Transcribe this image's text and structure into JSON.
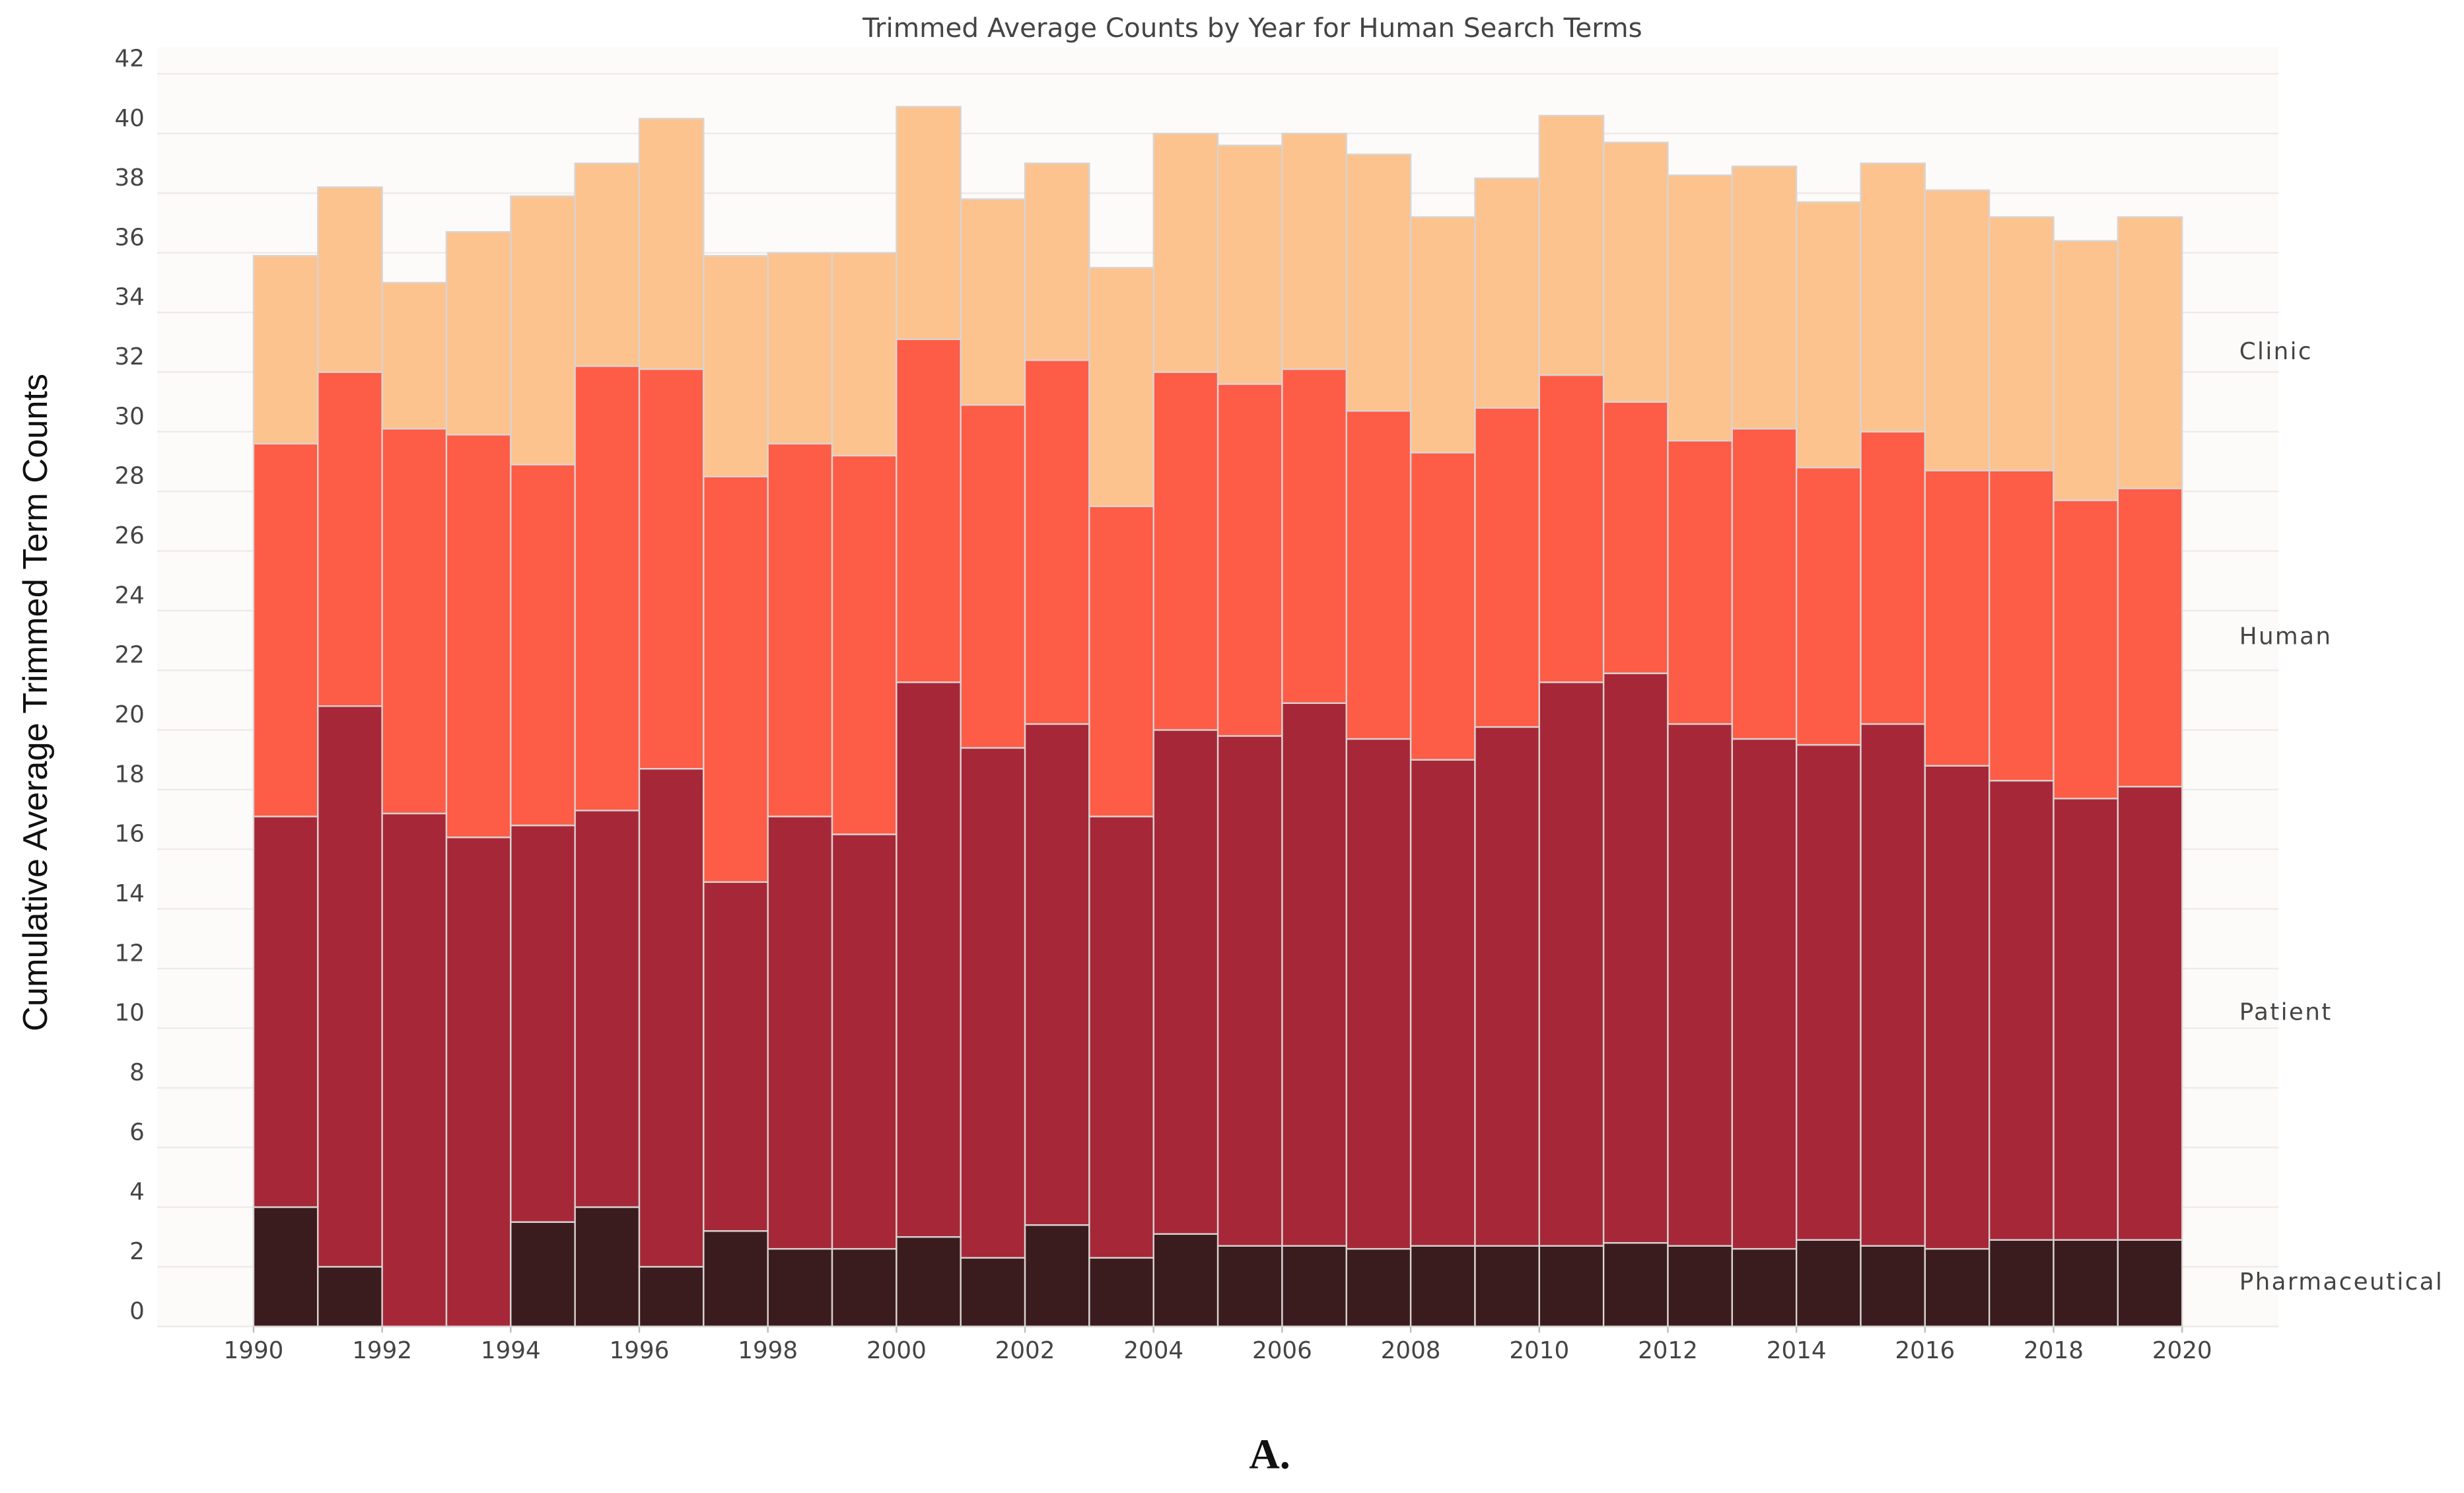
{
  "chart_data": {
    "type": "stacked-histogram",
    "title": "Trimmed Average Counts by Year for Human Search Terms",
    "y_label": "Cumulative Average Trimmed Term Counts",
    "caption": "A.",
    "bins": [
      1990,
      1991,
      1992,
      1993,
      1994,
      1995,
      1996,
      1997,
      1998,
      1999,
      2000,
      2001,
      2002,
      2003,
      2004,
      2005,
      2006,
      2007,
      2008,
      2009,
      2010,
      2011,
      2012,
      2013,
      2014,
      2015,
      2016,
      2017,
      2018,
      2019,
      2020
    ],
    "series": [
      {
        "name": "Pharmaceutical",
        "color": "#3a1c1f",
        "values": [
          4.0,
          2.0,
          0,
          0,
          3.5,
          4.0,
          2.0,
          3.2,
          2.6,
          2.6,
          3.0,
          2.3,
          3.4,
          2.3,
          3.1,
          2.7,
          2.7,
          2.6,
          2.7,
          2.7,
          2.7,
          2.8,
          2.7,
          2.6,
          2.9,
          2.7,
          2.6,
          2.9,
          2.9,
          2.9
        ]
      },
      {
        "name": "Patient",
        "color": "#a62838",
        "values": [
          13.1,
          18.8,
          17.2,
          16.4,
          13.3,
          13.3,
          16.7,
          11.7,
          14.5,
          13.9,
          18.6,
          17.1,
          16.8,
          14.8,
          16.9,
          17.1,
          18.2,
          17.1,
          16.3,
          17.4,
          18.9,
          19.1,
          17.5,
          17.1,
          16.6,
          17.5,
          16.2,
          15.4,
          14.8,
          15.2
        ]
      },
      {
        "name": "Human",
        "color": "#fd5c47",
        "values": [
          12.5,
          11.2,
          12.9,
          13.5,
          12.1,
          14.9,
          13.4,
          13.6,
          12.5,
          12.7,
          11.5,
          11.5,
          12.2,
          10.4,
          12.0,
          11.8,
          11.2,
          11.0,
          10.3,
          10.7,
          10.3,
          9.1,
          9.5,
          10.4,
          9.3,
          9.8,
          9.9,
          10.4,
          10.0,
          10.0
        ]
      },
      {
        "name": "Clinic",
        "color": "#fcc38f",
        "values": [
          6.3,
          6.2,
          4.9,
          6.8,
          9.0,
          6.8,
          8.4,
          7.4,
          6.4,
          6.8,
          7.8,
          6.9,
          6.6,
          8.0,
          8.0,
          8.0,
          7.9,
          8.6,
          7.9,
          7.7,
          8.7,
          8.7,
          8.9,
          8.8,
          8.9,
          9.0,
          9.4,
          8.5,
          8.7,
          9.1
        ]
      }
    ],
    "xlim": [
      1988.5,
      2021.5
    ],
    "xticks": [
      1990,
      1992,
      1994,
      1996,
      1998,
      2000,
      2002,
      2004,
      2006,
      2008,
      2010,
      2012,
      2014,
      2016,
      2018,
      2020
    ],
    "ylim": [
      0,
      42
    ],
    "yticks": [
      0,
      2,
      4,
      6,
      8,
      10,
      12,
      14,
      16,
      18,
      20,
      22,
      24,
      26,
      28,
      30,
      32,
      34,
      36,
      38,
      40,
      42
    ],
    "grid": true,
    "legend": "right"
  }
}
